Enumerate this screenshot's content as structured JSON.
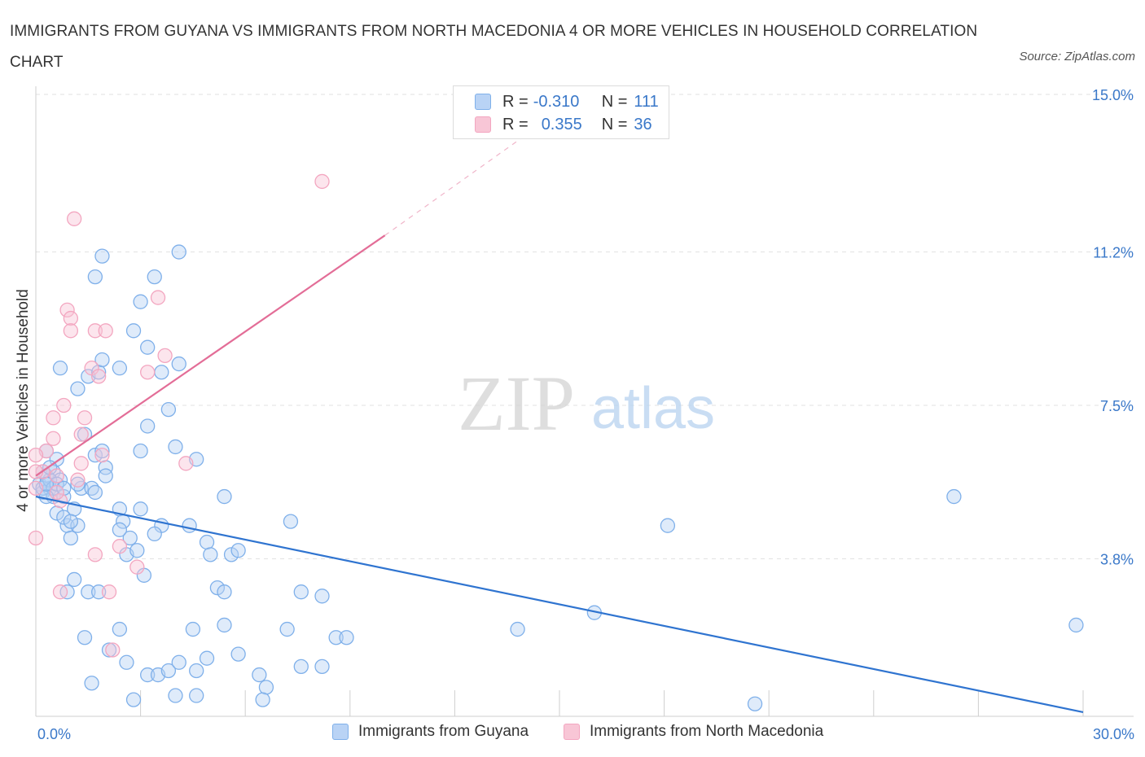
{
  "title": "IMMIGRANTS FROM GUYANA VS IMMIGRANTS FROM NORTH MACEDONIA 4 OR MORE VEHICLES IN HOUSEHOLD CORRELATION CHART",
  "source": "Source: ZipAtlas.com",
  "watermark": {
    "zip": "ZIP",
    "atlas": "atlas"
  },
  "legend": {
    "r_label": "R =",
    "n_label": "N =",
    "guyana": {
      "r": "-0.310",
      "n": "111"
    },
    "macedonia": {
      "r": "0.355",
      "n": "36"
    }
  },
  "chart_data": {
    "type": "scatter",
    "title": "IMMIGRANTS FROM GUYANA VS IMMIGRANTS FROM NORTH MACEDONIA 4 OR MORE VEHICLES IN HOUSEHOLD CORRELATION CHART",
    "xlabel": "",
    "ylabel": "4 or more Vehicles in Household",
    "xlim": [
      0,
      30
    ],
    "ylim": [
      0,
      15
    ],
    "x_tick_labels": [
      "0.0%",
      "30.0%"
    ],
    "y_ticks": [
      3.8,
      7.5,
      11.2,
      15.0
    ],
    "y_tick_labels": [
      "3.8%",
      "7.5%",
      "11.2%",
      "15.0%"
    ],
    "grid": true,
    "legend_position": "bottom",
    "series": [
      {
        "name": "Immigrants from Guyana",
        "color": "#7fb0ea",
        "line_color": "#2f74d0",
        "trend": {
          "x": [
            0,
            30
          ],
          "y": [
            5.3,
            0.1
          ]
        },
        "points": [
          [
            0.1,
            5.6
          ],
          [
            0.2,
            5.4
          ],
          [
            0.3,
            5.8
          ],
          [
            0.4,
            5.5
          ],
          [
            0.5,
            5.3
          ],
          [
            0.3,
            6.4
          ],
          [
            0.6,
            6.2
          ],
          [
            0.5,
            5.9
          ],
          [
            0.7,
            5.7
          ],
          [
            0.8,
            5.3
          ],
          [
            0.6,
            4.9
          ],
          [
            0.9,
            4.6
          ],
          [
            1.0,
            4.3
          ],
          [
            1.2,
            4.6
          ],
          [
            0.8,
            4.8
          ],
          [
            1.1,
            5.0
          ],
          [
            0.7,
            8.4
          ],
          [
            1.2,
            7.9
          ],
          [
            1.5,
            8.2
          ],
          [
            1.8,
            8.3
          ],
          [
            1.4,
            6.8
          ],
          [
            1.7,
            6.3
          ],
          [
            1.3,
            5.5
          ],
          [
            1.6,
            5.5
          ],
          [
            1.9,
            6.4
          ],
          [
            2.0,
            6.0
          ],
          [
            2.0,
            5.8
          ],
          [
            1.7,
            5.4
          ],
          [
            1.9,
            8.6
          ],
          [
            2.4,
            8.4
          ],
          [
            2.8,
            9.3
          ],
          [
            3.2,
            8.9
          ],
          [
            3.0,
            10.0
          ],
          [
            3.4,
            10.6
          ],
          [
            1.7,
            10.6
          ],
          [
            1.9,
            11.1
          ],
          [
            4.1,
            11.2
          ],
          [
            3.6,
            8.3
          ],
          [
            4.1,
            8.5
          ],
          [
            3.8,
            7.4
          ],
          [
            3.2,
            7.0
          ],
          [
            3.0,
            6.4
          ],
          [
            4.0,
            6.5
          ],
          [
            4.6,
            6.2
          ],
          [
            2.4,
            5.0
          ],
          [
            2.5,
            4.7
          ],
          [
            2.7,
            4.3
          ],
          [
            3.0,
            5.0
          ],
          [
            3.6,
            4.6
          ],
          [
            3.4,
            4.4
          ],
          [
            2.4,
            4.5
          ],
          [
            2.6,
            3.9
          ],
          [
            2.9,
            4.0
          ],
          [
            3.1,
            3.4
          ],
          [
            4.4,
            4.6
          ],
          [
            4.9,
            4.2
          ],
          [
            5.0,
            3.9
          ],
          [
            5.4,
            5.3
          ],
          [
            5.6,
            3.9
          ],
          [
            5.8,
            4.0
          ],
          [
            7.3,
            4.7
          ],
          [
            1.5,
            3.0
          ],
          [
            1.8,
            3.0
          ],
          [
            1.1,
            3.3
          ],
          [
            5.2,
            3.1
          ],
          [
            5.4,
            3.0
          ],
          [
            5.4,
            2.2
          ],
          [
            7.6,
            3.0
          ],
          [
            8.2,
            2.9
          ],
          [
            7.2,
            2.1
          ],
          [
            8.6,
            1.9
          ],
          [
            8.9,
            1.9
          ],
          [
            2.4,
            2.1
          ],
          [
            2.1,
            1.6
          ],
          [
            1.4,
            1.9
          ],
          [
            2.6,
            1.3
          ],
          [
            3.2,
            1.0
          ],
          [
            3.5,
            1.0
          ],
          [
            3.8,
            1.1
          ],
          [
            4.1,
            1.3
          ],
          [
            4.5,
            2.1
          ],
          [
            4.6,
            1.1
          ],
          [
            4.9,
            1.4
          ],
          [
            5.8,
            1.5
          ],
          [
            6.4,
            1.0
          ],
          [
            6.6,
            0.7
          ],
          [
            7.6,
            1.2
          ],
          [
            8.2,
            1.2
          ],
          [
            1.6,
            0.8
          ],
          [
            2.8,
            0.4
          ],
          [
            4.0,
            0.5
          ],
          [
            4.6,
            0.5
          ],
          [
            6.5,
            0.4
          ],
          [
            13.8,
            2.1
          ],
          [
            16.0,
            2.5
          ],
          [
            18.1,
            4.6
          ],
          [
            26.3,
            5.3
          ],
          [
            29.8,
            2.2
          ],
          [
            20.6,
            0.3
          ],
          [
            0.2,
            5.5
          ],
          [
            0.4,
            5.7
          ],
          [
            0.5,
            5.5
          ],
          [
            0.3,
            5.3
          ],
          [
            0.6,
            5.6
          ],
          [
            0.2,
            5.9
          ],
          [
            0.4,
            6.0
          ],
          [
            0.8,
            5.5
          ],
          [
            1.0,
            4.7
          ],
          [
            0.9,
            3.0
          ],
          [
            1.2,
            5.6
          ],
          [
            0.3,
            5.6
          ]
        ]
      },
      {
        "name": "Immigrants from North Macedonia",
        "color": "#f3a6c0",
        "line_color": "#e36d97",
        "trend": {
          "x": [
            0,
            10
          ],
          "y": [
            5.8,
            11.6
          ]
        },
        "trend_dashed_to": {
          "x": 14,
          "y": 14.0
        },
        "points": [
          [
            1.1,
            12.0
          ],
          [
            8.2,
            12.9
          ],
          [
            0.9,
            9.8
          ],
          [
            1.0,
            9.6
          ],
          [
            1.0,
            9.3
          ],
          [
            1.7,
            9.3
          ],
          [
            2.0,
            9.3
          ],
          [
            3.5,
            10.1
          ],
          [
            3.7,
            8.7
          ],
          [
            3.2,
            8.3
          ],
          [
            1.6,
            8.4
          ],
          [
            1.8,
            8.2
          ],
          [
            0.8,
            7.5
          ],
          [
            0.5,
            7.2
          ],
          [
            1.4,
            7.2
          ],
          [
            1.3,
            6.8
          ],
          [
            0.5,
            6.7
          ],
          [
            0.3,
            6.4
          ],
          [
            1.9,
            6.3
          ],
          [
            1.3,
            6.1
          ],
          [
            0.6,
            5.8
          ],
          [
            0.2,
            5.9
          ],
          [
            1.2,
            5.7
          ],
          [
            0.7,
            5.2
          ],
          [
            0.6,
            5.4
          ],
          [
            4.3,
            6.1
          ],
          [
            1.7,
            3.9
          ],
          [
            2.4,
            4.1
          ],
          [
            2.9,
            3.6
          ],
          [
            2.1,
            3.0
          ],
          [
            0.7,
            3.0
          ],
          [
            2.2,
            1.6
          ],
          [
            0.0,
            4.3
          ],
          [
            0.0,
            6.3
          ],
          [
            0.0,
            5.5
          ],
          [
            0.0,
            5.9
          ]
        ]
      }
    ]
  }
}
